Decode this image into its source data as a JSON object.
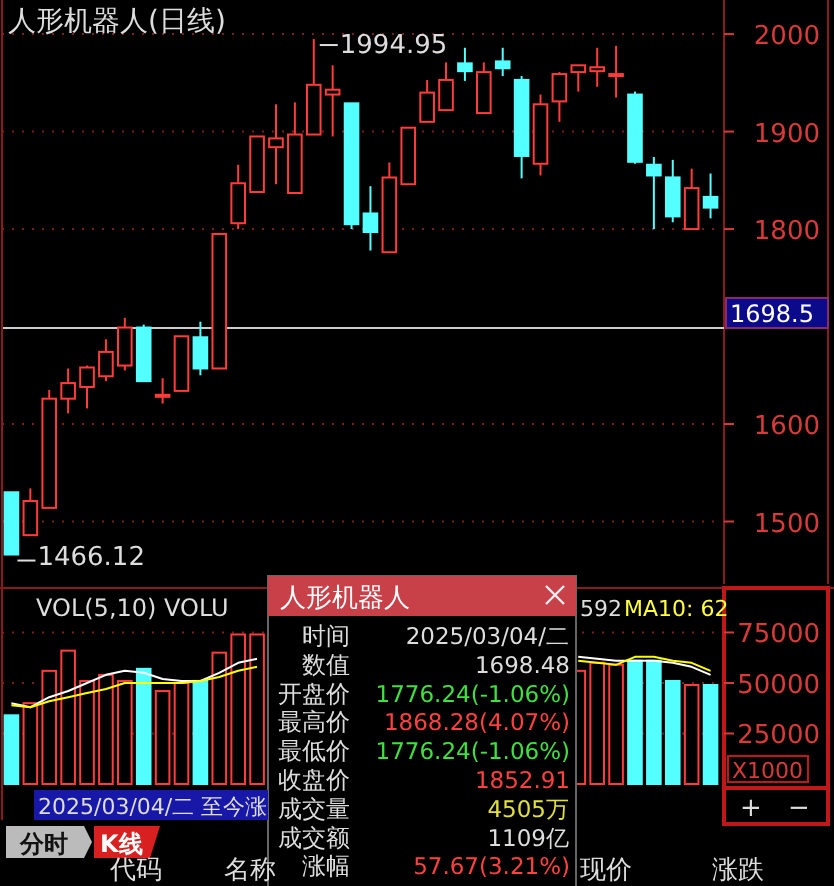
{
  "chart_data": [
    {
      "type": "candlestick",
      "title": "人形机器人(日线)",
      "categories": [
        null,
        null,
        null,
        null,
        null,
        null,
        null,
        null,
        null,
        null,
        null,
        null,
        null,
        null,
        null,
        null,
        null,
        null,
        null,
        null,
        null,
        null,
        null,
        null,
        null,
        null,
        null,
        null,
        null,
        null,
        null,
        null,
        null,
        null,
        null,
        null,
        null,
        null
      ],
      "ohlc": [
        [
          1530,
          1530,
          1466.12,
          1466.12
        ],
        [
          1486,
          1534,
          1486,
          1521
        ],
        [
          1514,
          1635,
          1514,
          1626
        ],
        [
          1626,
          1657,
          1611,
          1642
        ],
        [
          1638,
          1660,
          1616,
          1658
        ],
        [
          1649,
          1687,
          1644,
          1674
        ],
        [
          1660,
          1709,
          1655,
          1699
        ],
        [
          1699,
          1702,
          1644,
          1644
        ],
        [
          1628,
          1647,
          1621,
          1630
        ],
        [
          1634,
          1690,
          1634,
          1690
        ],
        [
          1689,
          1705,
          1650,
          1657
        ],
        [
          1657,
          1795,
          1657,
          1795
        ],
        [
          1806,
          1866,
          1800,
          1847
        ],
        [
          1838,
          1895,
          1838,
          1895
        ],
        [
          1884,
          1928,
          1846,
          1893
        ],
        [
          1837,
          1930,
          1837,
          1897
        ],
        [
          1897,
          1994.95,
          1897,
          1948
        ],
        [
          1938,
          1968,
          1895,
          1943
        ],
        [
          1929,
          1929,
          1800,
          1805
        ],
        [
          1816,
          1844,
          1778,
          1797
        ],
        [
          1776.24,
          1868.28,
          1776.24,
          1852.91
        ],
        [
          1846,
          1904,
          1846,
          1904
        ],
        [
          1910,
          1953,
          1910,
          1940
        ],
        [
          1922,
          1971,
          1921,
          1953
        ],
        [
          1970,
          1986,
          1952,
          1962
        ],
        [
          1919,
          1971,
          1919,
          1961
        ],
        [
          1972,
          1986,
          1957,
          1965
        ],
        [
          1953,
          1957,
          1852,
          1875
        ],
        [
          1867,
          1938,
          1855,
          1928
        ],
        [
          1931,
          1961,
          1910,
          1959
        ],
        [
          1961,
          1968,
          1941,
          1968
        ],
        [
          1962,
          1986,
          1946,
          1966
        ],
        [
          1958,
          1988,
          1935,
          1959
        ],
        [
          1938,
          1941,
          1867,
          1869
        ],
        [
          1866,
          1874,
          1800,
          1855
        ],
        [
          1853,
          1871,
          1807,
          1813
        ],
        [
          1800,
          1862,
          1800,
          1842
        ],
        [
          1833,
          1857,
          1811,
          1822
        ]
      ],
      "ylim": [
        1440,
        2035
      ],
      "yticks": [
        1500,
        1600,
        1800,
        1900,
        2000
      ],
      "grid": "y",
      "ref_lines": [
        {
          "axis": "y",
          "value": 1698.5,
          "label": "1698.5"
        }
      ],
      "annotations": [
        "1994.95",
        "1466.12"
      ]
    },
    {
      "type": "bar",
      "title": "VOL(5,10) VOLU",
      "categories": [
        null,
        null,
        null,
        null,
        null,
        null,
        null,
        null,
        null,
        null,
        null,
        null,
        null,
        null,
        null,
        null,
        null,
        null,
        null,
        null,
        null,
        null,
        null,
        null,
        null,
        null,
        null,
        null,
        null,
        null,
        null,
        null,
        null,
        null,
        null,
        null,
        null,
        null
      ],
      "series": [
        {
          "type": "bar",
          "values": [
            34000,
            40000,
            56000,
            66000,
            51000,
            54000,
            51000,
            57000,
            46000,
            50000,
            51000,
            65000,
            74000,
            74000,
            null,
            null,
            null,
            null,
            null,
            null,
            null,
            null,
            null,
            null,
            null,
            null,
            null,
            null,
            null,
            null,
            56000,
            60000,
            59000,
            61000,
            61000,
            51000,
            49000,
            49000
          ],
          "colors": [
            "#54ffff",
            "#ff3c3c",
            "#ff3c3c",
            "#ff3c3c",
            "#ff3c3c",
            "#ff3c3c",
            "#ff3c3c",
            "#54ffff",
            "#ff3c3c",
            "#ff3c3c",
            "#54ffff",
            "#ff3c3c",
            "#ff3c3c",
            "#ff3c3c",
            "#ff3c3c",
            "#ff3c3c",
            "#ff3c3c",
            "#ff3c3c",
            "#54ffff",
            "#54ffff",
            "#ff3c3c",
            "#ff3c3c",
            "#ff3c3c",
            "#ff3c3c",
            "#54ffff",
            "#ff3c3c",
            "#54ffff",
            "#54ffff",
            "#ff3c3c",
            "#ff3c3c",
            "#ff3c3c",
            "#ff3c3c",
            "#ff3c3c",
            "#54ffff",
            "#54ffff",
            "#54ffff",
            "#ff3c3c",
            "#54ffff"
          ]
        },
        {
          "type": "line",
          "color": "#ffffff",
          "values": [
            40000,
            38000,
            43000,
            46000,
            50000,
            54000,
            56000,
            55000,
            52000,
            51000,
            51000,
            55000,
            60000,
            62000,
            null,
            null,
            null,
            null,
            null,
            null,
            null,
            null,
            null,
            null,
            null,
            null,
            null,
            null,
            null,
            null,
            63000,
            62000,
            61000,
            61000,
            61000,
            60000,
            58000,
            54000
          ]
        },
        {
          "type": "line",
          "color": "#ffff00",
          "values": [
            39000,
            38000,
            41000,
            43000,
            45000,
            47000,
            50000,
            50000,
            50000,
            50000,
            51000,
            53000,
            56000,
            58000,
            null,
            null,
            null,
            null,
            null,
            null,
            null,
            null,
            null,
            null,
            null,
            null,
            null,
            null,
            null,
            null,
            61000,
            60000,
            59000,
            63000,
            63000,
            61000,
            60000,
            56000
          ]
        }
      ],
      "ylim": [
        0,
        97000
      ],
      "yticks": [
        25000,
        50000,
        75000
      ],
      "grid": "y",
      "annotations": [
        "592",
        "MA10: 62",
        "X1000"
      ]
    },
    {
      "type": "other",
      "title": "人形机器人",
      "annotations": [
        "时间",
        "2025/03/04/二",
        "数值",
        "1698.48",
        "开盘价",
        "1776.24(-1.06%)",
        "最高价",
        "1868.28(4.07%)",
        "最低价",
        "1776.24(-1.06%)",
        "收盘价",
        "1852.91",
        "成交量",
        "4505万",
        "成交额",
        "1109亿",
        "涨幅",
        "57.67(3.21%)"
      ]
    },
    {
      "type": "other",
      "annotations": [
        "2025/03/04/二 至今涨",
        "分时",
        "K线",
        "代码",
        "名称",
        "现价",
        "涨跌",
        "+",
        "−"
      ]
    }
  ]
}
